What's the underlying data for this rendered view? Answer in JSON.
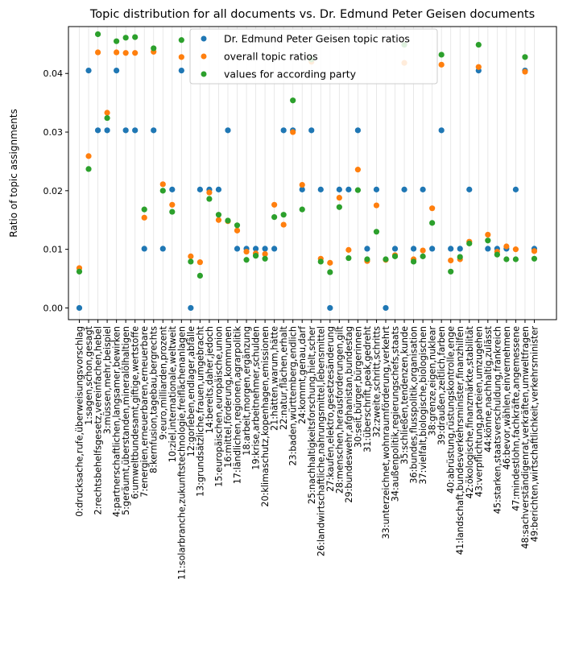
{
  "chart_data": {
    "type": "scatter",
    "title": "Topic distribution for all documents vs. Dr. Edmund Peter Geisen documents",
    "xlabel": "",
    "ylabel": "Ratio of topic assignments",
    "ylim": [
      -0.002,
      0.048
    ],
    "yticks": [
      "0.00",
      "0.01",
      "0.02",
      "0.03",
      "0.04"
    ],
    "grid": "vertical",
    "legend_position": "top-center",
    "categories": [
      "0:drucksache,rufe,überweisungsvorschlag",
      "1:sagen,schon,gesagt",
      "2:rechtsbehelfsgesetz,vereinfachen,hebel",
      "3:müssen,mehr,beispiel",
      "4:partnerschaftlichen,langsamer,bewirken",
      "5:geräumt,überstanden,mineralölhaltigen",
      "6:umweltbundesamt,giftige,wertstoffe",
      "7:energien,erneuerbaren,erneuerbare",
      "8:kernfusion,tagebau,bergrechts",
      "9:euro,milliarden,prozent",
      "10:ziel,internationale,weltweit",
      "11:solarbranche,zukunftstechnologie,freiflächenanlagen",
      "12:gorleben,endlager,abfälle",
      "13:grundsätzliche,frauen,umgebracht",
      "14:bereits,daher,jedoch",
      "15:europäischen,europäische,union",
      "16:mittel,förderung,kommunen",
      "17:ländlichen,regionen,agrarpolitik",
      "18:arbeit,morgen,ergänzung",
      "19:krise,arbeitnehmer,schulden",
      "20:klimaschutz,kopenhagen,emissionen",
      "21:hätten,warum,hätte",
      "22:natur,flächen,erhalt",
      "23:baden,württemberg,endlich",
      "24:kommt,genau,darf",
      "25:nachhaltigkeitsforschung,hielt,scher",
      "26:landwirtschaftliche,nahrungsmittel,lebensmittel",
      "27:kaufen,elektro,gesetzesänderung",
      "28:menschen,herausforderungen,gilt",
      "29:bundeswehr,afghanistan,bundestag",
      "30:seit,bürger,bürgerinnen",
      "31:überschrift,peak,gedreht",
      "32:zweite,schritt,schritts",
      "33:unterzeichnet,wohnraumförderung,verkehrt",
      "34:außenpolitik,regierungschefs,staats",
      "35:schließen,tendenzen,kunde",
      "36:bundes,flusspolitik,organisation",
      "37:vielfalt,biologische,biologischen",
      "38:grenze,eigen,nuklear",
      "39:draußen,zeitlich,farben",
      "40:abrüstung,rüstungskontrolle,enge",
      "41:landschaft,bundesverkehrsminister,finanzhilfen",
      "42:ökologische,finanzmärkte,stabilität",
      "43:verpflichtung,parteien,umzugehen",
      "44:könne,nachhaltig,zulässt",
      "45:starken,staatsverschuldung,frankreich",
      "46:bevor,wählen,einvernehmen",
      "47:mindestlohn,fachkräfte,angemessene",
      "48:sachverständigenrat,verkräften,umweltfragen",
      "49:berichten,wirtschaftlichkeit,verkehrsminister"
    ],
    "series": [
      {
        "name": "Dr. Edmund Peter Geisen topic ratios",
        "color": "#1f77b4",
        "values": [
          0.0,
          0.0405,
          0.0303,
          0.0303,
          0.0405,
          0.0303,
          0.0303,
          0.0101,
          0.0303,
          0.0101,
          0.0202,
          0.0405,
          0.0,
          0.0202,
          0.0202,
          0.0202,
          0.0303,
          0.0101,
          0.0101,
          0.0101,
          0.0101,
          0.0101,
          0.0303,
          0.0303,
          0.0202,
          0.0303,
          0.0202,
          0.0,
          0.0202,
          0.0202,
          0.0303,
          0.0101,
          0.0202,
          0.0,
          0.0101,
          0.0202,
          0.0101,
          0.0202,
          0.0101,
          0.0303,
          0.0101,
          0.0101,
          0.0202,
          0.0405,
          0.0101,
          0.0101,
          0.0101,
          0.0202,
          0.0405,
          0.0101
        ]
      },
      {
        "name": "overall topic ratios",
        "color": "#ff7f0e",
        "values": [
          0.0068,
          0.0259,
          0.0436,
          0.0333,
          0.0436,
          0.0435,
          0.0435,
          0.0154,
          0.0437,
          0.0211,
          0.0176,
          0.0428,
          0.0088,
          0.0078,
          0.0197,
          0.015,
          0.0148,
          0.0132,
          0.0096,
          0.0093,
          0.0092,
          0.0176,
          0.0142,
          0.03,
          0.021,
          0.042,
          0.0084,
          0.0077,
          0.0188,
          0.0099,
          0.0236,
          0.008,
          0.0175,
          0.0082,
          0.009,
          0.0418,
          0.0083,
          0.0098,
          0.017,
          0.0415,
          0.0081,
          0.0083,
          0.0113,
          0.0411,
          0.0125,
          0.0096,
          0.0105,
          0.01,
          0.0403,
          0.0097
        ]
      },
      {
        "name": "values for according party",
        "color": "#2ca02c",
        "values": [
          0.0062,
          0.0237,
          0.0467,
          0.0324,
          0.0455,
          0.0461,
          0.0462,
          0.0168,
          0.0443,
          0.02,
          0.0164,
          0.0457,
          0.0079,
          0.0055,
          0.0186,
          0.0159,
          0.0149,
          0.0141,
          0.0082,
          0.0089,
          0.0084,
          0.0155,
          0.0159,
          0.0354,
          0.0168,
          0.0424,
          0.0079,
          0.0061,
          0.0172,
          0.0085,
          0.0201,
          0.0083,
          0.013,
          0.0083,
          0.0088,
          0.0449,
          0.0079,
          0.0088,
          0.0145,
          0.0432,
          0.0062,
          0.0087,
          0.011,
          0.0449,
          0.0115,
          0.0091,
          0.0083,
          0.0083,
          0.0428,
          0.0084
        ]
      }
    ]
  }
}
